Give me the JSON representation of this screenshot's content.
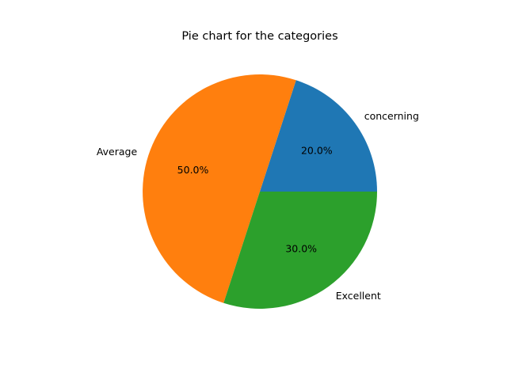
{
  "chart_data": {
    "type": "pie",
    "title": "Pie chart for the categories",
    "categories": [
      "concerning",
      "Average",
      "Excellent"
    ],
    "values": [
      20,
      50,
      30
    ],
    "percent_labels": [
      "20.0%",
      "50.0%",
      "30.0%"
    ],
    "colors": [
      "#1f77b4",
      "#ff7f0e",
      "#2ca02c"
    ],
    "start_angle_deg": 0,
    "direction": "counterclockwise",
    "legend": "none"
  }
}
